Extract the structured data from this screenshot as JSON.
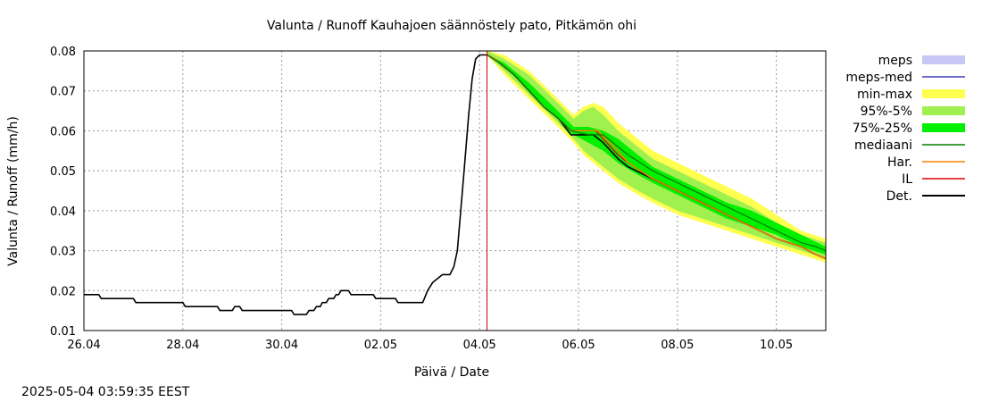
{
  "timestamp": "2025-05-04 03:59:35 EEST",
  "chart_data": {
    "type": "line",
    "title": "Valunta / Runoff  Kauhajoen säännöstely pato, Pitkämön ohi",
    "xlabel": "Päivä / Date",
    "ylabel": "Valunta / Runoff (mm/h)",
    "xlim": [
      0,
      15
    ],
    "ylim": [
      0.01,
      0.08
    ],
    "x_ticks": [
      {
        "x": 0,
        "label": "26.04"
      },
      {
        "x": 2,
        "label": "28.04"
      },
      {
        "x": 4,
        "label": "30.04"
      },
      {
        "x": 6,
        "label": "02.05"
      },
      {
        "x": 8,
        "label": "04.05"
      },
      {
        "x": 10,
        "label": "06.05"
      },
      {
        "x": 12,
        "label": "08.05"
      },
      {
        "x": 14,
        "label": "10.05"
      }
    ],
    "y_ticks": [
      {
        "y": 0.01,
        "label": "0.01"
      },
      {
        "y": 0.02,
        "label": "0.02"
      },
      {
        "y": 0.03,
        "label": "0.03"
      },
      {
        "y": 0.04,
        "label": "0.04"
      },
      {
        "y": 0.05,
        "label": "0.05"
      },
      {
        "y": 0.06,
        "label": "0.06"
      },
      {
        "y": 0.07,
        "label": "0.07"
      },
      {
        "y": 0.08,
        "label": "0.08"
      }
    ],
    "grid": true,
    "legend_position": "right",
    "forecast_start_x": 8.15,
    "legend": [
      {
        "key": "meps",
        "label": "meps",
        "color": "#c8c8f5",
        "style": "band"
      },
      {
        "key": "meps_med",
        "label": "meps-med",
        "color": "#3c3cb4",
        "style": "line"
      },
      {
        "key": "minmax",
        "label": "min-max",
        "color": "#ffff50",
        "style": "band"
      },
      {
        "key": "p95_5",
        "label": "95%-5%",
        "color": "#a0f050",
        "style": "band"
      },
      {
        "key": "p75_25",
        "label": "75%-25%",
        "color": "#00f000",
        "style": "band"
      },
      {
        "key": "median",
        "label": "mediaani",
        "color": "#008000",
        "style": "line"
      },
      {
        "key": "har",
        "label": "Har.",
        "color": "#ff8000",
        "style": "line"
      },
      {
        "key": "il",
        "label": "IL",
        "color": "#e00000",
        "style": "line"
      },
      {
        "key": "det",
        "label": "Det.",
        "color": "#000000",
        "style": "line"
      }
    ],
    "series": [
      {
        "key": "det_observed",
        "name": "Det.",
        "color": "#000000",
        "points": [
          [
            0,
            0.019
          ],
          [
            0.3,
            0.019
          ],
          [
            0.35,
            0.018
          ],
          [
            1,
            0.018
          ],
          [
            1.05,
            0.017
          ],
          [
            2,
            0.017
          ],
          [
            2.05,
            0.016
          ],
          [
            2.7,
            0.016
          ],
          [
            2.75,
            0.015
          ],
          [
            3,
            0.015
          ],
          [
            3.05,
            0.016
          ],
          [
            3.15,
            0.016
          ],
          [
            3.2,
            0.015
          ],
          [
            4.2,
            0.015
          ],
          [
            4.25,
            0.014
          ],
          [
            4.5,
            0.014
          ],
          [
            4.55,
            0.015
          ],
          [
            4.65,
            0.015
          ],
          [
            4.7,
            0.016
          ],
          [
            4.78,
            0.016
          ],
          [
            4.82,
            0.017
          ],
          [
            4.9,
            0.017
          ],
          [
            4.95,
            0.018
          ],
          [
            5.05,
            0.018
          ],
          [
            5.1,
            0.019
          ],
          [
            5.15,
            0.019
          ],
          [
            5.2,
            0.02
          ],
          [
            5.35,
            0.02
          ],
          [
            5.4,
            0.019
          ],
          [
            5.85,
            0.019
          ],
          [
            5.9,
            0.018
          ],
          [
            6.3,
            0.018
          ],
          [
            6.35,
            0.017
          ],
          [
            6.85,
            0.017
          ],
          [
            6.95,
            0.02
          ],
          [
            7.05,
            0.022
          ],
          [
            7.15,
            0.023
          ],
          [
            7.25,
            0.024
          ],
          [
            7.4,
            0.024
          ],
          [
            7.48,
            0.026
          ],
          [
            7.55,
            0.03
          ],
          [
            7.62,
            0.04
          ],
          [
            7.7,
            0.052
          ],
          [
            7.78,
            0.064
          ],
          [
            7.85,
            0.073
          ],
          [
            7.92,
            0.078
          ],
          [
            8,
            0.079
          ],
          [
            8.15,
            0.079
          ]
        ]
      },
      {
        "key": "det_forecast",
        "name": "Det.",
        "color": "#000000",
        "points": [
          [
            8.15,
            0.079
          ],
          [
            8.3,
            0.078
          ],
          [
            8.5,
            0.076
          ],
          [
            8.7,
            0.074
          ],
          [
            9,
            0.07
          ],
          [
            9.3,
            0.066
          ],
          [
            9.6,
            0.063
          ],
          [
            9.85,
            0.059
          ],
          [
            10.3,
            0.059
          ],
          [
            10.5,
            0.057
          ],
          [
            10.8,
            0.053
          ],
          [
            11,
            0.051
          ],
          [
            11.5,
            0.048
          ],
          [
            12,
            0.045
          ],
          [
            12.5,
            0.042
          ],
          [
            13,
            0.039
          ],
          [
            13.5,
            0.036
          ],
          [
            14,
            0.033
          ],
          [
            14.5,
            0.031
          ],
          [
            14.8,
            0.029
          ],
          [
            15,
            0.028
          ]
        ]
      },
      {
        "key": "il",
        "name": "IL",
        "color": "#e00000",
        "points": [
          [
            8.15,
            0.079
          ],
          [
            8.3,
            0.078
          ],
          [
            8.5,
            0.076
          ],
          [
            8.7,
            0.074
          ],
          [
            9,
            0.07
          ],
          [
            9.3,
            0.066
          ],
          [
            9.6,
            0.063
          ],
          [
            9.85,
            0.06
          ],
          [
            10.35,
            0.06
          ],
          [
            10.5,
            0.058
          ],
          [
            10.8,
            0.054
          ],
          [
            11,
            0.052
          ],
          [
            11.5,
            0.048
          ],
          [
            12,
            0.045
          ],
          [
            12.5,
            0.042
          ],
          [
            13,
            0.039
          ],
          [
            13.5,
            0.036
          ],
          [
            14,
            0.033
          ],
          [
            14.5,
            0.031
          ],
          [
            14.8,
            0.029
          ],
          [
            15,
            0.028
          ]
        ]
      },
      {
        "key": "har",
        "name": "Har.",
        "color": "#ff8000",
        "points": [
          [
            8.15,
            0.079
          ],
          [
            8.3,
            0.078
          ],
          [
            8.5,
            0.076
          ],
          [
            8.7,
            0.074
          ],
          [
            9,
            0.07
          ],
          [
            9.3,
            0.066
          ],
          [
            9.6,
            0.063
          ],
          [
            9.85,
            0.06
          ],
          [
            10.4,
            0.06
          ],
          [
            10.55,
            0.058
          ],
          [
            10.8,
            0.055
          ],
          [
            11,
            0.052
          ],
          [
            11.5,
            0.048
          ],
          [
            12,
            0.045
          ],
          [
            12.5,
            0.042
          ],
          [
            13,
            0.039
          ],
          [
            13.5,
            0.036
          ],
          [
            14,
            0.033
          ],
          [
            14.5,
            0.031
          ],
          [
            14.8,
            0.029
          ],
          [
            15,
            0.028
          ]
        ]
      },
      {
        "key": "median",
        "name": "mediaani",
        "color": "#008000",
        "points": [
          [
            8.15,
            0.079
          ],
          [
            8.4,
            0.077
          ],
          [
            8.7,
            0.074
          ],
          [
            9,
            0.07
          ],
          [
            9.3,
            0.066
          ],
          [
            9.6,
            0.063
          ],
          [
            9.85,
            0.06
          ],
          [
            10.2,
            0.059
          ],
          [
            10.5,
            0.059
          ],
          [
            10.8,
            0.056
          ],
          [
            11,
            0.054
          ],
          [
            11.5,
            0.05
          ],
          [
            12,
            0.047
          ],
          [
            12.5,
            0.044
          ],
          [
            13,
            0.041
          ],
          [
            13.5,
            0.038
          ],
          [
            14,
            0.035
          ],
          [
            14.5,
            0.032
          ],
          [
            14.8,
            0.031
          ],
          [
            15,
            0.03
          ]
        ]
      }
    ],
    "bands": [
      {
        "key": "minmax",
        "name": "min-max",
        "color": "#ffff50",
        "x": [
          8.15,
          8.5,
          9,
          9.5,
          9.9,
          10.1,
          10.3,
          10.5,
          10.8,
          11.2,
          11.5,
          12,
          12.5,
          13,
          13.5,
          14,
          14.5,
          15
        ],
        "lower": [
          0.079,
          0.074,
          0.068,
          0.062,
          0.057,
          0.054,
          0.052,
          0.05,
          0.047,
          0.044,
          0.042,
          0.039,
          0.037,
          0.035,
          0.033,
          0.031,
          0.029,
          0.027
        ],
        "upper": [
          0.08,
          0.079,
          0.075,
          0.069,
          0.064,
          0.066,
          0.067,
          0.066,
          0.062,
          0.058,
          0.055,
          0.052,
          0.049,
          0.046,
          0.043,
          0.039,
          0.035,
          0.033
        ]
      },
      {
        "key": "p95_5",
        "name": "95%-5%",
        "color": "#a0f050",
        "x": [
          8.15,
          8.5,
          9,
          9.5,
          9.9,
          10.1,
          10.3,
          10.5,
          10.8,
          11.2,
          11.5,
          12,
          12.5,
          13,
          13.5,
          14,
          14.5,
          15
        ],
        "lower": [
          0.079,
          0.075,
          0.069,
          0.063,
          0.058,
          0.055,
          0.053,
          0.051,
          0.048,
          0.045,
          0.043,
          0.04,
          0.038,
          0.036,
          0.034,
          0.032,
          0.03,
          0.028
        ],
        "upper": [
          0.08,
          0.078,
          0.074,
          0.068,
          0.063,
          0.065,
          0.066,
          0.064,
          0.06,
          0.056,
          0.053,
          0.05,
          0.047,
          0.044,
          0.041,
          0.037,
          0.034,
          0.032
        ]
      },
      {
        "key": "p75_25",
        "name": "75%-25%",
        "color": "#00f000",
        "x": [
          8.15,
          8.5,
          9,
          9.5,
          9.9,
          10.2,
          10.5,
          10.8,
          11.2,
          11.5,
          12,
          12.5,
          13,
          13.5,
          14,
          14.5,
          15
        ],
        "lower": [
          0.079,
          0.076,
          0.07,
          0.064,
          0.059,
          0.057,
          0.055,
          0.052,
          0.049,
          0.047,
          0.044,
          0.041,
          0.038,
          0.036,
          0.034,
          0.031,
          0.029
        ],
        "upper": [
          0.079,
          0.077,
          0.072,
          0.066,
          0.061,
          0.061,
          0.06,
          0.058,
          0.054,
          0.051,
          0.048,
          0.045,
          0.042,
          0.04,
          0.037,
          0.034,
          0.031
        ]
      }
    ]
  }
}
